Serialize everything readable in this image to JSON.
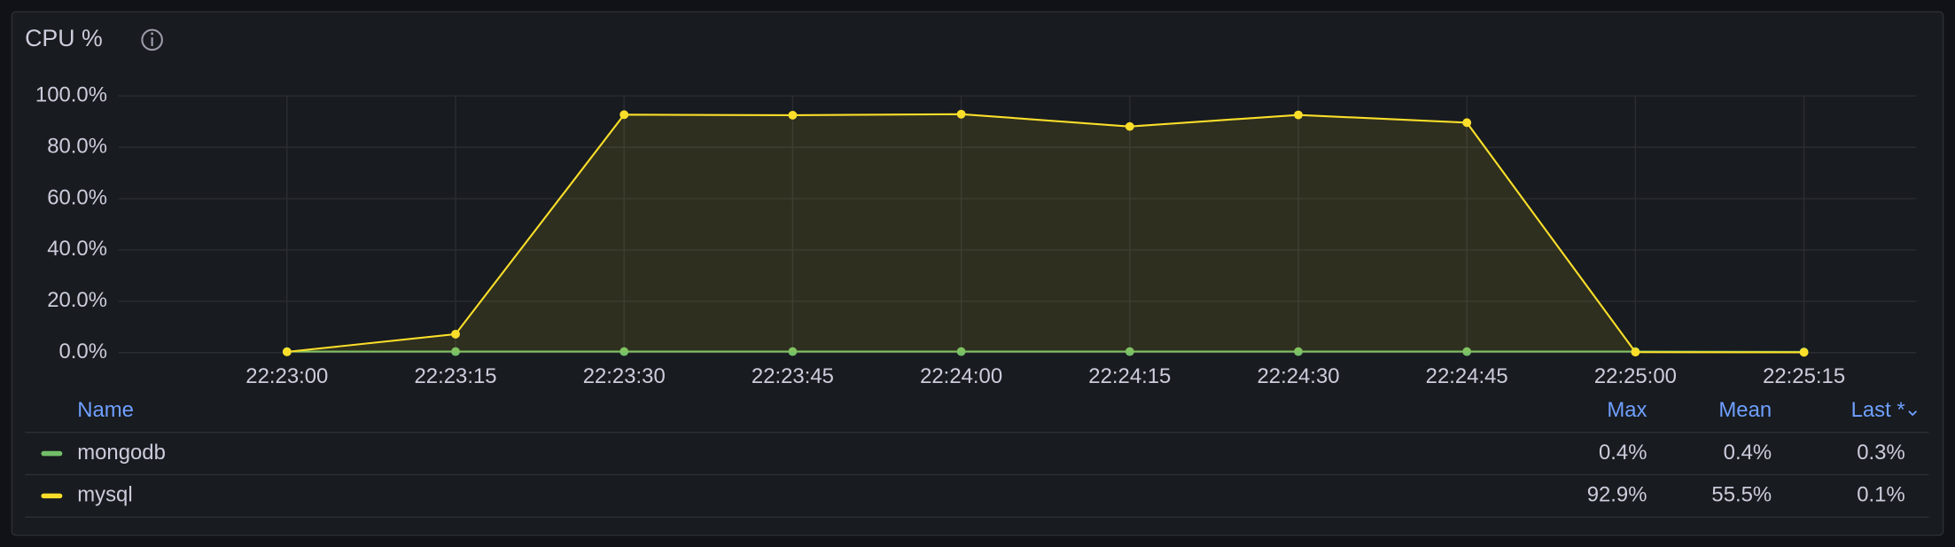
{
  "chart_data": {
    "type": "line",
    "title": "CPU %",
    "x": [
      "22:23:00",
      "22:23:15",
      "22:23:30",
      "22:23:45",
      "22:24:00",
      "22:24:15",
      "22:24:30",
      "22:24:45",
      "22:25:00",
      "22:25:15"
    ],
    "xlim": [
      "22:22:45",
      "22:25:25"
    ],
    "xticks": [
      "22:23:00",
      "22:23:15",
      "22:23:30",
      "22:23:45",
      "22:24:00",
      "22:24:15",
      "22:24:30",
      "22:24:45",
      "22:25:00",
      "22:25:15"
    ],
    "ylim": [
      0,
      100
    ],
    "yticks": [
      {
        "value": 0,
        "label": "0.0%"
      },
      {
        "value": 20,
        "label": "20.0%"
      },
      {
        "value": 40,
        "label": "40.0%"
      },
      {
        "value": 60,
        "label": "60.0%"
      },
      {
        "value": 80,
        "label": "80.0%"
      },
      {
        "value": 100,
        "label": "100.0%"
      }
    ],
    "grid": true,
    "series": [
      {
        "name": "mongodb",
        "color": "#73bf69",
        "values": [
          0.4,
          0.4,
          0.4,
          0.4,
          0.4,
          0.4,
          0.4,
          0.4,
          0.4,
          0.3
        ],
        "max": "0.4%",
        "mean": "0.4%",
        "last": "0.3%"
      },
      {
        "name": "mysql",
        "color": "#fade2a",
        "area": true,
        "values": [
          0.3,
          7.2,
          92.7,
          92.5,
          92.9,
          88.1,
          92.6,
          89.6,
          0.2,
          0.1
        ],
        "max": "92.9%",
        "mean": "55.5%",
        "last": "0.1%"
      }
    ],
    "legend_columns": [
      "Name",
      "Max",
      "Mean",
      "Last *"
    ]
  }
}
